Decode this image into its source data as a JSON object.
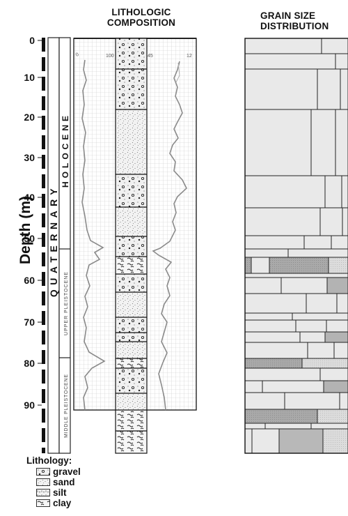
{
  "headers": {
    "lithologic_composition_line1": "LITHOLOGIC",
    "lithologic_composition_line2": "COMPOSITION",
    "grain_size_line1": "GRAIN SIZE",
    "grain_size_line2": "DISTRIBUTION"
  },
  "y_axis": {
    "label": "Depth (m)",
    "ticks": [
      "0",
      "10",
      "20",
      "30",
      "40",
      "50",
      "60",
      "70",
      "80",
      "90"
    ]
  },
  "stratigraphy": {
    "system": "QUATERNARY",
    "units": [
      "HOLOCENE",
      "UPPER PLEISTOCENE",
      "MIDDLE PLEISTOCENE"
    ]
  },
  "log_scales": {
    "left_log": [
      "0",
      "100"
    ],
    "right_log": [
      "45",
      "12"
    ]
  },
  "legend": {
    "title": "Lithology:",
    "items": [
      "gravel",
      "sand",
      "silt",
      "clay"
    ]
  },
  "colors": {
    "gravel": "#e6e6e6",
    "sand": "#efefef",
    "silt": "#d9d9d9",
    "clay": "#cfcfcf",
    "grain_light": "#e9e9e9",
    "grain_dark": "#a6a6a6"
  }
}
